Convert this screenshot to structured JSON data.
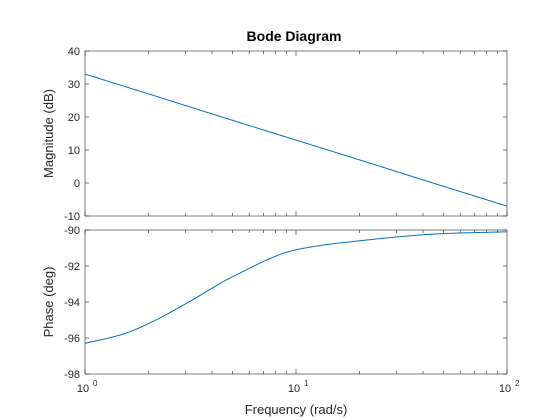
{
  "chart_data": [
    {
      "type": "line",
      "title": "Bode Diagram",
      "ylabel": "Magnitude (dB)",
      "xlabel": "",
      "xscale": "log",
      "xlim": [
        1,
        100
      ],
      "ylim": [
        -10,
        40
      ],
      "yticks": [
        "40",
        "30",
        "20",
        "10",
        "0",
        "-10"
      ],
      "series": [
        {
          "x": [
            1,
            2,
            5,
            10,
            20,
            50,
            100
          ],
          "values": [
            33.0,
            27.0,
            19.0,
            13.0,
            7.0,
            -1.0,
            -7.0
          ]
        }
      ]
    },
    {
      "type": "line",
      "ylabel": "Phase (deg)",
      "xlabel": "Frequency  (rad/s)",
      "xscale": "log",
      "xlim": [
        1,
        100
      ],
      "ylim": [
        -98,
        -90
      ],
      "yticks": [
        "-90",
        "-92",
        "-94",
        "-96",
        "-98"
      ],
      "xticks": [
        {
          "base": "10",
          "exp": "0"
        },
        {
          "base": "10",
          "exp": "1"
        },
        {
          "base": "10",
          "exp": "2"
        }
      ],
      "series": [
        {
          "x": [
            1,
            1.5,
            2,
            3,
            5,
            10,
            20,
            50,
            100
          ],
          "values": [
            -96.3,
            -95.8,
            -95.2,
            -94.1,
            -92.6,
            -91.1,
            -90.6,
            -90.2,
            -90.1
          ]
        }
      ]
    }
  ],
  "line_color": "#0072BD"
}
